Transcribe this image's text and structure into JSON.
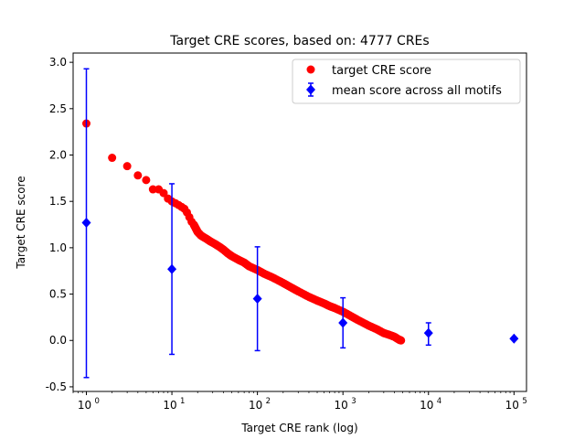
{
  "chart_data": {
    "type": "scatter",
    "title": "Target CRE scores, based on: 4777 CREs",
    "xlabel": "Target CRE rank (log)",
    "ylabel": "Target CRE score",
    "xscale": "log",
    "xlim": [
      0.7,
      140000
    ],
    "ylim": [
      -0.55,
      3.1
    ],
    "yticks": [
      -0.5,
      0.0,
      0.5,
      1.0,
      1.5,
      2.0,
      2.5,
      3.0
    ],
    "xticks": [
      1,
      10,
      100,
      1000,
      10000,
      100000
    ],
    "xtick_bases": [
      "10",
      "10",
      "10",
      "10",
      "10",
      "10"
    ],
    "xtick_exponents": [
      "0",
      "1",
      "2",
      "3",
      "4",
      "5"
    ],
    "grid": false,
    "legend_position": "top-right",
    "series": [
      {
        "name": "target CRE score",
        "marker": "circle",
        "color": "#ff0000",
        "x": [
          1,
          2,
          3,
          4,
          5,
          6,
          7,
          8,
          9,
          10,
          11,
          12,
          13,
          14,
          15,
          16,
          17,
          18,
          19,
          20,
          22,
          25,
          28,
          32,
          36,
          40,
          45,
          50,
          60,
          70,
          80,
          100,
          120,
          150,
          200,
          250,
          300,
          400,
          500,
          600,
          700,
          800,
          1000,
          1200,
          1500,
          2000,
          2500,
          3000,
          3500,
          4000,
          4500,
          4777
        ],
        "y": [
          2.34,
          1.97,
          1.88,
          1.78,
          1.73,
          1.63,
          1.63,
          1.59,
          1.53,
          1.5,
          1.48,
          1.46,
          1.44,
          1.42,
          1.38,
          1.33,
          1.28,
          1.25,
          1.21,
          1.17,
          1.13,
          1.1,
          1.07,
          1.04,
          1.01,
          0.98,
          0.94,
          0.91,
          0.87,
          0.84,
          0.8,
          0.76,
          0.72,
          0.68,
          0.62,
          0.57,
          0.53,
          0.47,
          0.43,
          0.4,
          0.37,
          0.35,
          0.31,
          0.27,
          0.22,
          0.16,
          0.12,
          0.08,
          0.06,
          0.04,
          0.01,
          0.0
        ]
      },
      {
        "name": "mean score across all motifs",
        "marker": "diamond",
        "color": "#0000ff",
        "x": [
          1,
          10,
          100,
          1000,
          10000,
          100000
        ],
        "y": [
          1.27,
          0.77,
          0.45,
          0.19,
          0.08,
          0.02
        ],
        "yerr_low": [
          -0.4,
          -0.15,
          -0.11,
          -0.08,
          -0.05,
          0.02
        ],
        "yerr_high": [
          2.93,
          1.69,
          1.01,
          0.46,
          0.19,
          0.02
        ]
      }
    ]
  }
}
